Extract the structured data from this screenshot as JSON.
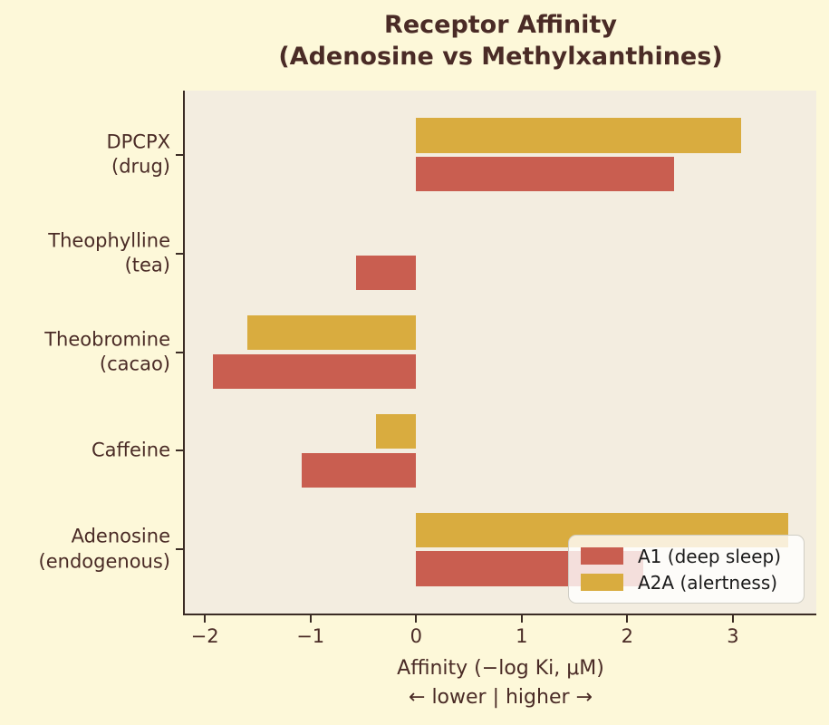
{
  "colors": {
    "figure_bg": "#fdf8d9",
    "axes_bg": "#f3ede0",
    "text_brown": "#4a2b26",
    "spine": "#3b2c25",
    "legend_border": "#cfcdc4",
    "legend_text": "#1a1a1a"
  },
  "chart_data": {
    "type": "bar",
    "orientation": "horizontal",
    "title": "Receptor Affinity\n(Adenosine vs Methylxanthines)",
    "categories": [
      "DPCPX\n(drug)",
      "Theophylline\n(tea)",
      "Theobromine\n(cacao)",
      "Caffeine",
      "Adenosine\n(endogenous)"
    ],
    "series": [
      {
        "name": "A1 (deep sleep)",
        "color": "#c95e50",
        "values": [
          2.44,
          -0.57,
          -1.92,
          -1.08,
          2.15
        ]
      },
      {
        "name": "A2A (alertness)",
        "color": "#d9ac3f",
        "values": [
          3.08,
          0.0,
          -1.6,
          -0.38,
          3.52
        ]
      }
    ],
    "xlabel": "Affinity (−log Ki, μM)",
    "xlabel_sub": "← lower | higher →",
    "x_ticks": [
      -2,
      -1,
      0,
      1,
      2,
      3
    ],
    "x_tick_labels": [
      "−2",
      "−1",
      "0",
      "1",
      "2",
      "3"
    ],
    "xlim": [
      -2.19,
      3.79
    ],
    "grid": false,
    "legend_position": "lower right"
  }
}
